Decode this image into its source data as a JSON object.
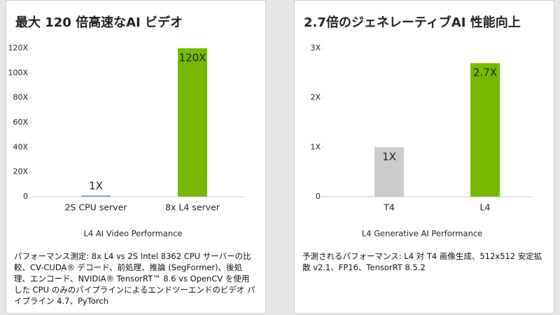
{
  "chart_data": [
    {
      "type": "bar",
      "title": "最大 120 倍高速なAI ビデオ",
      "categories": [
        "2S CPU server",
        "8x L4 server"
      ],
      "values": [
        1,
        120
      ],
      "value_labels": [
        "1X",
        "120X"
      ],
      "colors": [
        "#5aa9d6",
        "#76b900"
      ],
      "ylim": [
        0,
        120
      ],
      "yticks": [
        0,
        {
          "value": 20,
          "label": "20X"
        },
        {
          "value": 40,
          "label": "40X"
        },
        {
          "value": 60,
          "label": "60X"
        },
        {
          "value": 80,
          "label": "80X"
        },
        {
          "value": 100,
          "label": "100X"
        },
        {
          "value": 120,
          "label": "120X"
        }
      ],
      "grid": false,
      "xlabel": "L4 AI Video Performance",
      "footnote": "パフォーマンス測定: 8x L4 vs 2S Intel 8362 CPU サーバーの比較、CV-CUDA® デコード、前処理、推論 (SegFormer)、後処理、エンコード、NVIDIA® TensorRT™ 8.6 vs OpenCV を使用した CPU のみのパイプラインによるエンドツーエンドのビデオ パイプライン 4.7、PyTorch"
    },
    {
      "type": "bar",
      "title": "2.7倍のジェネレーティブAI 性能向上",
      "categories": [
        "T4",
        "L4"
      ],
      "values": [
        1,
        2.7
      ],
      "value_labels": [
        "1X",
        "2.7X"
      ],
      "colors": [
        "#cccccc",
        "#76b900"
      ],
      "ylim": [
        0,
        3
      ],
      "yticks": [
        0,
        {
          "value": 1,
          "label": "1X"
        },
        {
          "value": 2,
          "label": "2X"
        },
        {
          "value": 3,
          "label": "3X"
        }
      ],
      "grid": false,
      "xlabel": "L4 Generative AI Performance",
      "footnote": "予測されるパフォーマンス: L4 対 T4 画像生成、512x512 安定拡散 v2.1、FP16、TensorRT 8.5.2"
    }
  ]
}
